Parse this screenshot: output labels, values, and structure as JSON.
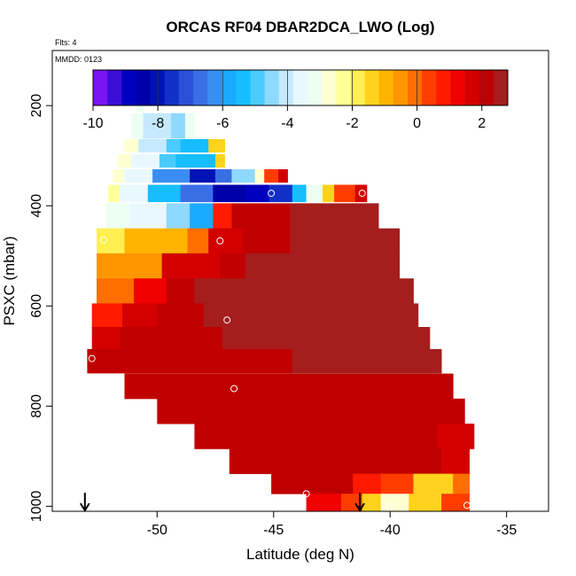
{
  "chart_data": {
    "type": "heatmap",
    "title": "ORCAS RF04 DBAR2DCA_LWO (Log)",
    "flights_note": "Flts: 4",
    "date_note": "MMDD: 0123",
    "xlabel": "Latitude (deg N)",
    "ylabel": "PSXC (mbar)",
    "xlim": [
      -54.5,
      -33.2
    ],
    "ylim": [
      1010,
      90
    ],
    "x_ticks": [
      -50,
      -45,
      -40,
      -35
    ],
    "x_tick_labels": [
      "-50",
      "-45",
      "-40",
      "-35"
    ],
    "y_ticks": [
      200,
      400,
      600,
      800,
      1000
    ],
    "y_tick_labels": [
      "200",
      "400",
      "600",
      "800",
      "1000"
    ],
    "colorbar": {
      "min": -10,
      "max": 2.8,
      "ticks": [
        -10,
        -8,
        -6,
        -4,
        -2,
        0,
        2
      ],
      "tick_labels": [
        "-10",
        "-8",
        "-6",
        "-4",
        "-2",
        "0",
        "2"
      ],
      "colors": [
        "#7b14ee",
        "#3c0dd6",
        "#0000c0",
        "#0000a8",
        "#0012b4",
        "#1230c8",
        "#2a50d8",
        "#3a6ee6",
        "#3a8ef2",
        "#1aaaff",
        "#16beff",
        "#4acbff",
        "#8fd8ff",
        "#c5eaff",
        "#e9f8ff",
        "#ecfff2",
        "#ffffd2",
        "#ffff9a",
        "#ffef52",
        "#ffd21e",
        "#ffb400",
        "#ff9600",
        "#ff6e00",
        "#ff3c00",
        "#ff1a00",
        "#f00000",
        "#d40000",
        "#c00000",
        "#a51d1d"
      ]
    },
    "arrows": [
      {
        "lat": -53.1,
        "label": ""
      },
      {
        "lat": -41.3,
        "label": ""
      }
    ],
    "points": [
      {
        "lat": -52.3,
        "p": 468
      },
      {
        "lat": -52.8,
        "p": 705
      },
      {
        "lat": -47.3,
        "p": 470
      },
      {
        "lat": -47.0,
        "p": 628
      },
      {
        "lat": -46.7,
        "p": 765
      },
      {
        "lat": -45.1,
        "p": 375
      },
      {
        "lat": -43.6,
        "p": 975
      },
      {
        "lat": -41.2,
        "p": 375
      },
      {
        "lat": -40.0,
        "p": 1000
      },
      {
        "lat": -37.0,
        "p": 762
      },
      {
        "lat": -36.3,
        "p": 822
      },
      {
        "lat": -36.7,
        "p": 998
      }
    ],
    "rows": [
      {
        "p": 200,
        "dp": 26,
        "segments": [
          {
            "lat0": -50.9,
            "lat1": -50.6,
            "val": -3.2
          }
        ]
      },
      {
        "p": 240,
        "dp": 50,
        "segments": [
          {
            "lat0": -51.1,
            "lat1": -50.6,
            "val": -3.0
          },
          {
            "lat0": -50.6,
            "lat1": -49.4,
            "val": -4.2
          },
          {
            "lat0": -49.4,
            "lat1": -48.8,
            "val": -4.5
          },
          {
            "lat0": -48.8,
            "lat1": -48.4,
            "val": -3.0
          }
        ]
      },
      {
        "p": 280,
        "dp": 26,
        "segments": [
          {
            "lat0": -51.4,
            "lat1": -50.8,
            "val": -2.7
          },
          {
            "lat0": -50.8,
            "lat1": -49.6,
            "val": -4.0
          },
          {
            "lat0": -49.6,
            "lat1": -49.0,
            "val": -4.8
          },
          {
            "lat0": -49.0,
            "lat1": -47.8,
            "val": -5.4
          },
          {
            "lat0": -47.8,
            "lat1": -47.1,
            "val": -1.3
          }
        ]
      },
      {
        "p": 310,
        "dp": 26,
        "segments": [
          {
            "lat0": -51.7,
            "lat1": -51.1,
            "val": -2.6
          },
          {
            "lat0": -51.1,
            "lat1": -49.9,
            "val": -3.6
          },
          {
            "lat0": -49.9,
            "lat1": -49.2,
            "val": -4.8
          },
          {
            "lat0": -49.2,
            "lat1": -47.5,
            "val": -5.5
          },
          {
            "lat0": -47.5,
            "lat1": -47.1,
            "val": -1.2
          }
        ]
      },
      {
        "p": 340,
        "dp": 26,
        "segments": [
          {
            "lat0": -51.9,
            "lat1": -51.4,
            "val": -2.5
          },
          {
            "lat0": -51.4,
            "lat1": -50.2,
            "val": -3.8
          },
          {
            "lat0": -50.2,
            "lat1": -48.6,
            "val": -6.2
          },
          {
            "lat0": -48.6,
            "lat1": -47.5,
            "val": -7.9
          },
          {
            "lat0": -47.5,
            "lat1": -46.8,
            "val": -6.5
          },
          {
            "lat0": -46.8,
            "lat1": -45.8,
            "val": -4.5
          },
          {
            "lat0": -45.8,
            "lat1": -45.4,
            "val": -2.8
          },
          {
            "lat0": -45.4,
            "lat1": -44.8,
            "val": 0.2
          },
          {
            "lat0": -44.8,
            "lat1": -44.4,
            "val": 1.6
          }
        ]
      },
      {
        "p": 375,
        "dp": 34,
        "segments": [
          {
            "lat0": -52.1,
            "lat1": -51.6,
            "val": -2.4
          },
          {
            "lat0": -51.6,
            "lat1": -50.4,
            "val": -3.6
          },
          {
            "lat0": -50.4,
            "lat1": -49.0,
            "val": -5.2
          },
          {
            "lat0": -49.0,
            "lat1": -47.6,
            "val": -6.6
          },
          {
            "lat0": -47.6,
            "lat1": -46.2,
            "val": -8.3
          },
          {
            "lat0": -46.2,
            "lat1": -45.2,
            "val": -9.1
          },
          {
            "lat0": -45.2,
            "lat1": -44.2,
            "val": -7.5
          },
          {
            "lat0": -44.2,
            "lat1": -43.6,
            "val": -5.5
          },
          {
            "lat0": -43.6,
            "lat1": -42.9,
            "val": -3.0
          },
          {
            "lat0": -42.9,
            "lat1": -42.4,
            "val": -1.6
          },
          {
            "lat0": -42.4,
            "lat1": -41.5,
            "val": 0.4
          },
          {
            "lat0": -41.5,
            "lat1": -41.0,
            "val": 1.5
          }
        ]
      },
      {
        "p": 420,
        "dp": 50,
        "segments": [
          {
            "lat0": -52.2,
            "lat1": -51.2,
            "val": -3.0
          },
          {
            "lat0": -51.2,
            "lat1": -49.6,
            "val": -3.8
          },
          {
            "lat0": -49.6,
            "lat1": -48.6,
            "val": -4.6
          },
          {
            "lat0": -48.6,
            "lat1": -47.6,
            "val": -5.6
          },
          {
            "lat0": -47.6,
            "lat1": -46.8,
            "val": 0.6
          },
          {
            "lat0": -46.8,
            "lat1": -44.3,
            "val": 2.0
          },
          {
            "lat0": -44.3,
            "lat1": -40.5,
            "val": 2.7
          }
        ]
      },
      {
        "p": 470,
        "dp": 50,
        "segments": [
          {
            "lat0": -52.6,
            "lat1": -51.4,
            "val": -1.8
          },
          {
            "lat0": -51.4,
            "lat1": -48.7,
            "val": -1.0
          },
          {
            "lat0": -48.7,
            "lat1": -47.8,
            "val": 0.0
          },
          {
            "lat0": -47.8,
            "lat1": -46.3,
            "val": 1.5
          },
          {
            "lat0": -46.3,
            "lat1": -44.3,
            "val": 2.0
          },
          {
            "lat0": -44.3,
            "lat1": -40.7,
            "val": 2.7
          },
          {
            "lat0": -40.7,
            "lat1": -39.6,
            "val": 2.7
          }
        ]
      },
      {
        "p": 520,
        "dp": 50,
        "segments": [
          {
            "lat0": -52.6,
            "lat1": -49.8,
            "val": -0.4
          },
          {
            "lat0": -49.8,
            "lat1": -47.3,
            "val": 1.6
          },
          {
            "lat0": -47.3,
            "lat1": -46.2,
            "val": 2.1
          },
          {
            "lat0": -46.2,
            "lat1": -39.6,
            "val": 2.7
          }
        ]
      },
      {
        "p": 570,
        "dp": 50,
        "segments": [
          {
            "lat0": -52.6,
            "lat1": -51.0,
            "val": 0.0
          },
          {
            "lat0": -51.0,
            "lat1": -49.6,
            "val": 1.2
          },
          {
            "lat0": -49.6,
            "lat1": -48.4,
            "val": 2.0
          },
          {
            "lat0": -48.4,
            "lat1": -39.0,
            "val": 2.7
          }
        ]
      },
      {
        "p": 620,
        "dp": 50,
        "segments": [
          {
            "lat0": -52.8,
            "lat1": -51.5,
            "val": 1.0
          },
          {
            "lat0": -51.5,
            "lat1": -50.0,
            "val": 1.6
          },
          {
            "lat0": -50.0,
            "lat1": -48.0,
            "val": 2.0
          },
          {
            "lat0": -48.0,
            "lat1": -38.8,
            "val": 2.7
          }
        ]
      },
      {
        "p": 665,
        "dp": 46,
        "segments": [
          {
            "lat0": -52.8,
            "lat1": -51.6,
            "val": 1.7
          },
          {
            "lat0": -51.6,
            "lat1": -47.2,
            "val": 2.1
          },
          {
            "lat0": -47.2,
            "lat1": -38.3,
            "val": 2.7
          }
        ]
      },
      {
        "p": 710,
        "dp": 48,
        "segments": [
          {
            "lat0": -53.0,
            "lat1": -51.4,
            "val": 2.1
          },
          {
            "lat0": -51.4,
            "lat1": -48.4,
            "val": 2.1
          },
          {
            "lat0": -48.4,
            "lat1": -44.2,
            "val": 2.2
          },
          {
            "lat0": -44.2,
            "lat1": -37.8,
            "val": 2.6
          }
        ]
      },
      {
        "p": 760,
        "dp": 50,
        "segments": [
          {
            "lat0": -51.4,
            "lat1": -37.3,
            "val": 2.1
          }
        ]
      },
      {
        "p": 810,
        "dp": 50,
        "segments": [
          {
            "lat0": -50.0,
            "lat1": -36.8,
            "val": 2.1
          }
        ]
      },
      {
        "p": 860,
        "dp": 50,
        "segments": [
          {
            "lat0": -48.4,
            "lat1": -38.0,
            "val": 2.1
          },
          {
            "lat0": -38.0,
            "lat1": -37.3,
            "val": 1.6
          },
          {
            "lat0": -37.3,
            "lat1": -36.4,
            "val": 1.9
          }
        ]
      },
      {
        "p": 910,
        "dp": 50,
        "segments": [
          {
            "lat0": -46.9,
            "lat1": -41.0,
            "val": 2.1
          },
          {
            "lat0": -41.0,
            "lat1": -37.8,
            "val": 2.0
          },
          {
            "lat0": -37.8,
            "lat1": -36.6,
            "val": 1.8
          }
        ]
      },
      {
        "p": 955,
        "dp": 40,
        "segments": [
          {
            "lat0": -45.1,
            "lat1": -41.6,
            "val": 2.1
          },
          {
            "lat0": -41.6,
            "lat1": -40.4,
            "val": 1.0
          },
          {
            "lat0": -40.4,
            "lat1": -39.0,
            "val": 0.2
          },
          {
            "lat0": -39.0,
            "lat1": -37.3,
            "val": -1.3
          },
          {
            "lat0": -37.3,
            "lat1": -36.6,
            "val": -0.2
          }
        ]
      },
      {
        "p": 992,
        "dp": 34,
        "segments": [
          {
            "lat0": -43.6,
            "lat1": -42.1,
            "val": 1.4
          },
          {
            "lat0": -42.1,
            "lat1": -41.2,
            "val": 0.2
          },
          {
            "lat0": -41.2,
            "lat1": -40.4,
            "val": -1.2
          },
          {
            "lat0": -40.4,
            "lat1": -39.2,
            "val": -2.7
          },
          {
            "lat0": -39.2,
            "lat1": -37.8,
            "val": -1.2
          },
          {
            "lat0": -37.8,
            "lat1": -36.6,
            "val": 0.4
          }
        ]
      }
    ]
  }
}
